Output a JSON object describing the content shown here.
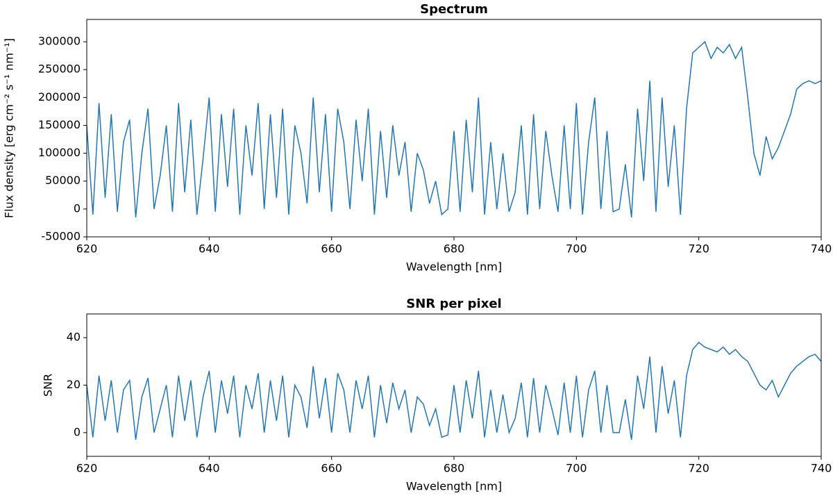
{
  "chart_data": [
    {
      "type": "line",
      "title": "Spectrum",
      "xlabel": "Wavelength [nm]",
      "ylabel": "Flux density [erg cm⁻² s⁻¹ nm⁻¹]",
      "x": [
        620,
        621,
        622,
        623,
        624,
        625,
        626,
        627,
        628,
        629,
        630,
        631,
        632,
        633,
        634,
        635,
        636,
        637,
        638,
        639,
        640,
        641,
        642,
        643,
        644,
        645,
        646,
        647,
        648,
        649,
        650,
        651,
        652,
        653,
        654,
        655,
        656,
        657,
        658,
        659,
        660,
        661,
        662,
        663,
        664,
        665,
        666,
        667,
        668,
        669,
        670,
        671,
        672,
        673,
        674,
        675,
        676,
        677,
        678,
        679,
        680,
        681,
        682,
        683,
        684,
        685,
        686,
        687,
        688,
        689,
        690,
        691,
        692,
        693,
        694,
        695,
        696,
        697,
        698,
        699,
        700,
        701,
        702,
        703,
        704,
        705,
        706,
        707,
        708,
        709,
        710,
        711,
        712,
        713,
        714,
        715,
        716,
        717,
        718,
        719,
        720,
        721,
        722,
        723,
        724,
        725,
        726,
        727,
        728,
        729,
        730,
        731,
        732,
        733,
        734,
        735,
        736,
        737,
        738,
        739,
        740
      ],
      "series": [
        {
          "color": "#1f77b4",
          "values": [
            150000,
            -10000,
            190000,
            20000,
            170000,
            -5000,
            120000,
            160000,
            -15000,
            100000,
            180000,
            0,
            60000,
            150000,
            -5000,
            190000,
            30000,
            160000,
            -10000,
            90000,
            200000,
            -5000,
            170000,
            40000,
            180000,
            -10000,
            150000,
            60000,
            190000,
            0,
            170000,
            20000,
            180000,
            -10000,
            150000,
            100000,
            10000,
            200000,
            30000,
            170000,
            -5000,
            180000,
            120000,
            0,
            160000,
            50000,
            180000,
            -10000,
            140000,
            20000,
            150000,
            60000,
            120000,
            -5000,
            100000,
            70000,
            10000,
            50000,
            -10000,
            0,
            140000,
            -5000,
            160000,
            30000,
            200000,
            -10000,
            120000,
            0,
            100000,
            -5000,
            30000,
            150000,
            -10000,
            170000,
            0,
            140000,
            60000,
            -5000,
            150000,
            0,
            190000,
            -10000,
            120000,
            200000,
            0,
            140000,
            -5000,
            0,
            80000,
            -15000,
            180000,
            50000,
            230000,
            -5000,
            200000,
            40000,
            150000,
            -10000,
            180000,
            280000,
            290000,
            300000,
            270000,
            290000,
            280000,
            295000,
            270000,
            290000,
            200000,
            100000,
            60000,
            130000,
            90000,
            110000,
            140000,
            170000,
            215000,
            225000,
            230000,
            225000,
            230000
          ]
        }
      ],
      "xlim": [
        620,
        740
      ],
      "xticks": [
        620,
        640,
        660,
        680,
        700,
        720,
        740
      ],
      "ylim": [
        -50000,
        340000
      ],
      "yticks": [
        -50000,
        0,
        50000,
        100000,
        150000,
        200000,
        250000,
        300000
      ]
    },
    {
      "type": "line",
      "title": "SNR per pixel",
      "xlabel": "Wavelength [nm]",
      "ylabel": "SNR",
      "x": [
        620,
        621,
        622,
        623,
        624,
        625,
        626,
        627,
        628,
        629,
        630,
        631,
        632,
        633,
        634,
        635,
        636,
        637,
        638,
        639,
        640,
        641,
        642,
        643,
        644,
        645,
        646,
        647,
        648,
        649,
        650,
        651,
        652,
        653,
        654,
        655,
        656,
        657,
        658,
        659,
        660,
        661,
        662,
        663,
        664,
        665,
        666,
        667,
        668,
        669,
        670,
        671,
        672,
        673,
        674,
        675,
        676,
        677,
        678,
        679,
        680,
        681,
        682,
        683,
        684,
        685,
        686,
        687,
        688,
        689,
        690,
        691,
        692,
        693,
        694,
        695,
        696,
        697,
        698,
        699,
        700,
        701,
        702,
        703,
        704,
        705,
        706,
        707,
        708,
        709,
        710,
        711,
        712,
        713,
        714,
        715,
        716,
        717,
        718,
        719,
        720,
        721,
        722,
        723,
        724,
        725,
        726,
        727,
        728,
        729,
        730,
        731,
        732,
        733,
        734,
        735,
        736,
        737,
        738,
        739,
        740
      ],
      "series": [
        {
          "color": "#1f77b4",
          "values": [
            20,
            -2,
            24,
            5,
            22,
            0,
            18,
            22,
            -3,
            15,
            23,
            0,
            10,
            20,
            -2,
            24,
            5,
            22,
            -2,
            15,
            26,
            0,
            22,
            8,
            24,
            -2,
            20,
            10,
            25,
            0,
            22,
            5,
            24,
            -2,
            20,
            15,
            2,
            28,
            6,
            23,
            0,
            25,
            18,
            0,
            22,
            10,
            24,
            -2,
            20,
            4,
            21,
            10,
            18,
            0,
            15,
            12,
            3,
            10,
            -2,
            -1,
            20,
            0,
            22,
            6,
            26,
            -2,
            18,
            0,
            16,
            0,
            6,
            21,
            -2,
            23,
            0,
            20,
            10,
            -1,
            21,
            0,
            24,
            -2,
            18,
            26,
            0,
            20,
            0,
            0,
            14,
            -3,
            24,
            10,
            32,
            0,
            28,
            8,
            22,
            -2,
            24,
            35,
            38,
            36,
            35,
            34,
            36,
            33,
            35,
            32,
            30,
            25,
            20,
            18,
            22,
            15,
            20,
            25,
            28,
            30,
            32,
            33,
            30
          ]
        }
      ],
      "xlim": [
        620,
        740
      ],
      "xticks": [
        620,
        640,
        660,
        680,
        700,
        720,
        740
      ],
      "ylim": [
        -10,
        50
      ],
      "yticks": [
        0,
        20,
        40
      ]
    }
  ]
}
